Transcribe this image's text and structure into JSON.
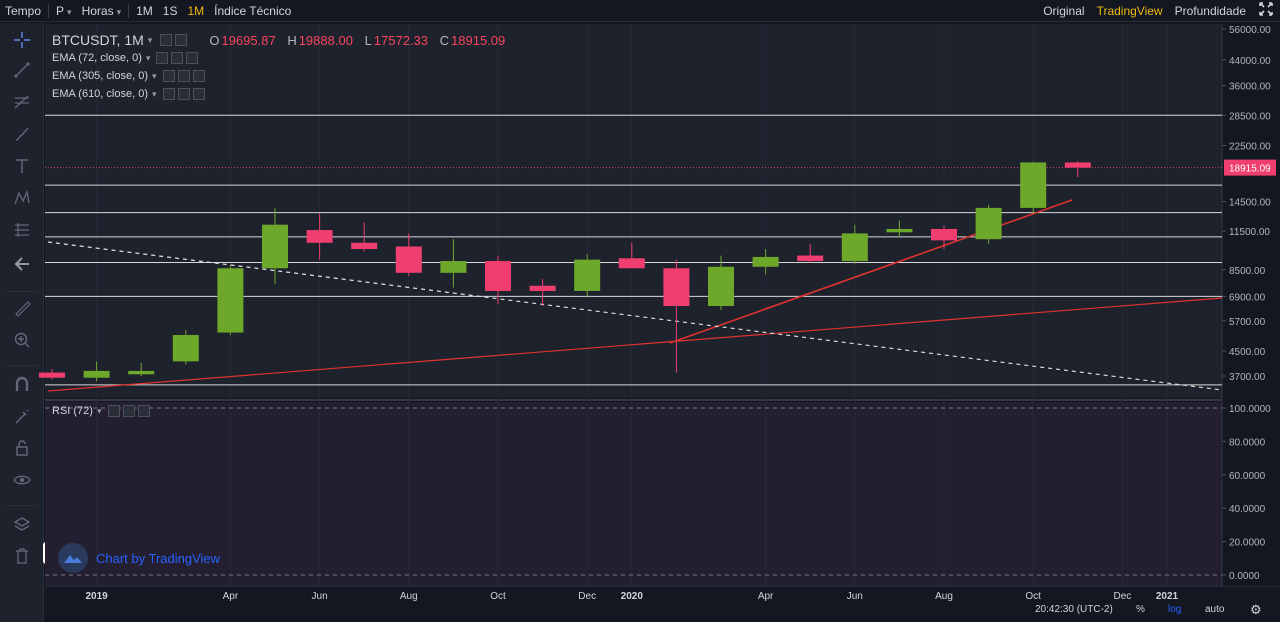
{
  "topbar": {
    "left": [
      {
        "label": "Tempo",
        "active": false,
        "dropdown": false
      },
      {
        "label": "P",
        "active": false,
        "dropdown": true
      },
      {
        "label": "Horas",
        "active": false,
        "dropdown": true
      },
      {
        "label": "1M",
        "active": false,
        "dropdown": false
      },
      {
        "label": "1S",
        "active": false,
        "dropdown": false
      },
      {
        "label": "1M",
        "active": true,
        "dropdown": false
      },
      {
        "label": "Índice Técnico",
        "active": false,
        "dropdown": false
      }
    ],
    "right": [
      {
        "label": "Original",
        "active": false
      },
      {
        "label": "TradingView",
        "active": true
      },
      {
        "label": "Profundidade",
        "active": false
      }
    ],
    "expand_icon": "expand-icon"
  },
  "symbol": {
    "name": "BTCUSDT, 1M",
    "open_key": "O",
    "open": "19695.87",
    "high_key": "H",
    "high": "19888.00",
    "low_key": "L",
    "low": "17572.33",
    "close_key": "C",
    "close": "18915.09"
  },
  "indicators": [
    {
      "label": "EMA (72, close, 0)"
    },
    {
      "label": "EMA (305, close, 0)"
    },
    {
      "label": "EMA (610, close, 0)"
    }
  ],
  "rsi": {
    "label": "RSI (72)"
  },
  "brand": {
    "label": "Chart by TradingView"
  },
  "status": {
    "time": "20:42:30 (UTC-2)",
    "percent": "%",
    "log": "log",
    "auto": "auto"
  },
  "colors": {
    "up": "#6ea82b",
    "down": "#ef3e6f",
    "line": "#e0332f",
    "bg": "#131722",
    "accent": "#f0b90b",
    "last_price": "#ef3e6f"
  },
  "chart_data": {
    "type": "candlestick",
    "price_axis_labels": [
      "56000.00",
      "44000.00",
      "36000.00",
      "28500.00",
      "22500.00",
      "18915.09",
      "14500.00",
      "11500.00",
      "8500.00",
      "6900.00",
      "5700.00",
      "4500.00",
      "3700.00"
    ],
    "rsi_axis_labels": [
      "100.0000",
      "80.0000",
      "60.0000",
      "40.0000",
      "20.0000",
      "0.0000"
    ],
    "time_labels": [
      "2019",
      "Apr",
      "Jun",
      "Aug",
      "Oct",
      "Dec",
      "2020",
      "Apr",
      "Jun",
      "Aug",
      "Oct",
      "Dec",
      "2021"
    ],
    "last_price": "18915.09",
    "scale": "log",
    "candles": [
      {
        "x": "2018-12",
        "o": 3800,
        "h": 3900,
        "l": 3600,
        "c": 3650
      },
      {
        "x": "2019-01",
        "o": 3650,
        "h": 4150,
        "l": 3550,
        "c": 3850
      },
      {
        "x": "2019-02",
        "o": 3750,
        "h": 4100,
        "l": 3700,
        "c": 3850
      },
      {
        "x": "2019-03",
        "o": 4150,
        "h": 5300,
        "l": 4050,
        "c": 5100
      },
      {
        "x": "2019-04",
        "o": 5200,
        "h": 8800,
        "l": 5100,
        "c": 8600
      },
      {
        "x": "2019-05",
        "o": 8600,
        "h": 13800,
        "l": 7600,
        "c": 12100
      },
      {
        "x": "2019-06",
        "o": 11600,
        "h": 13200,
        "l": 9200,
        "c": 10500
      },
      {
        "x": "2019-07",
        "o": 10500,
        "h": 12300,
        "l": 9800,
        "c": 10000
      },
      {
        "x": "2019-08",
        "o": 10200,
        "h": 11300,
        "l": 8100,
        "c": 8300
      },
      {
        "x": "2019-09",
        "o": 8300,
        "h": 10800,
        "l": 7400,
        "c": 9100
      },
      {
        "x": "2019-10",
        "o": 9100,
        "h": 9500,
        "l": 6500,
        "c": 7200
      },
      {
        "x": "2019-11",
        "o": 7500,
        "h": 7900,
        "l": 6400,
        "c": 7200
      },
      {
        "x": "2019-12",
        "o": 7200,
        "h": 9600,
        "l": 6900,
        "c": 9200
      },
      {
        "x": "2020-01",
        "o": 9300,
        "h": 10500,
        "l": 8600,
        "c": 8600
      },
      {
        "x": "2020-02",
        "o": 8600,
        "h": 9200,
        "l": 3800,
        "c": 6400
      },
      {
        "x": "2020-03",
        "o": 6400,
        "h": 9500,
        "l": 6200,
        "c": 8700
      },
      {
        "x": "2020-04",
        "o": 8700,
        "h": 10000,
        "l": 8200,
        "c": 9400
      },
      {
        "x": "2020-05",
        "o": 9500,
        "h": 10400,
        "l": 9000,
        "c": 9100
      },
      {
        "x": "2020-06",
        "o": 9100,
        "h": 12100,
        "l": 8900,
        "c": 11300
      },
      {
        "x": "2020-07",
        "o": 11400,
        "h": 12500,
        "l": 11000,
        "c": 11700
      },
      {
        "x": "2020-08",
        "o": 11700,
        "h": 12000,
        "l": 10000,
        "c": 10700
      },
      {
        "x": "2020-09",
        "o": 10800,
        "h": 14100,
        "l": 10400,
        "c": 13800
      },
      {
        "x": "2020-10",
        "o": 13800,
        "h": 19800,
        "l": 13200,
        "c": 19700
      },
      {
        "x": "2020-11",
        "o": 19695.87,
        "h": 19888,
        "l": 17572.33,
        "c": 18915.09
      }
    ]
  }
}
